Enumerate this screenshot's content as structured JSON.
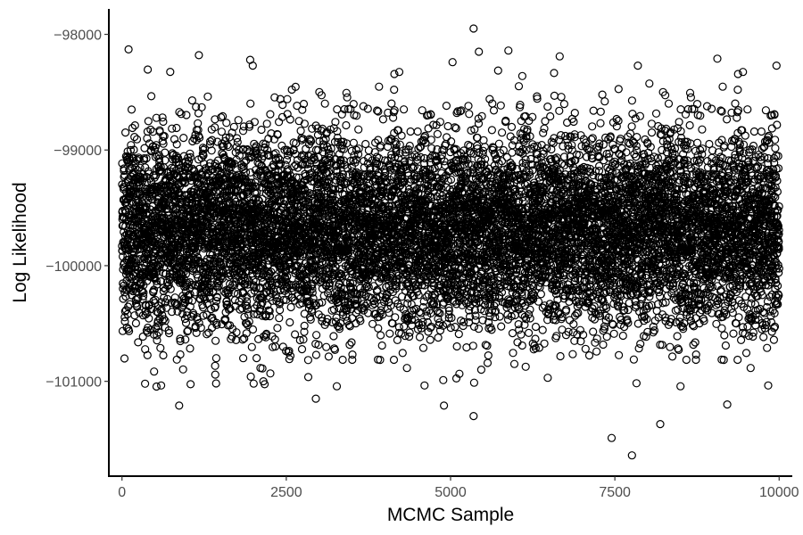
{
  "chart_data": {
    "type": "scatter",
    "title": "",
    "xlabel": "MCMC Sample",
    "ylabel": "Log Likelihood",
    "xlim": [
      -200,
      10200
    ],
    "ylim": [
      -101820,
      -97780
    ],
    "x_ticks": [
      0,
      2500,
      5000,
      7500,
      10000
    ],
    "x_tick_labels": [
      "0",
      "2500",
      "5000",
      "7500",
      "10000"
    ],
    "y_ticks": [
      -98000,
      -99000,
      -100000,
      -101000
    ],
    "y_tick_labels": [
      "−98000",
      "−99000",
      "−100000",
      "−101000"
    ],
    "grid": false,
    "marker": "open-circle",
    "series": [
      {
        "n": 10000,
        "x_range": [
          1,
          10000
        ],
        "y_center": -99700,
        "y_spread_sd": 420,
        "notable_points": [
          {
            "x": 100,
            "y": -98130
          },
          {
            "x": 1170,
            "y": -98180
          },
          {
            "x": 1950,
            "y": -98220
          },
          {
            "x": 1990,
            "y": -98270
          },
          {
            "x": 5030,
            "y": -98240
          },
          {
            "x": 5350,
            "y": -97950
          },
          {
            "x": 5430,
            "y": -98150
          },
          {
            "x": 5880,
            "y": -98140
          },
          {
            "x": 6660,
            "y": -98190
          },
          {
            "x": 7850,
            "y": -98270
          },
          {
            "x": 9060,
            "y": -98210
          },
          {
            "x": 9960,
            "y": -98270
          },
          {
            "x": 870,
            "y": -101210
          },
          {
            "x": 2950,
            "y": -101150
          },
          {
            "x": 4900,
            "y": -101210
          },
          {
            "x": 5350,
            "y": -101300
          },
          {
            "x": 7450,
            "y": -101490
          },
          {
            "x": 7760,
            "y": -101640
          },
          {
            "x": 8190,
            "y": -101370
          },
          {
            "x": 9210,
            "y": -101200
          }
        ]
      }
    ]
  }
}
